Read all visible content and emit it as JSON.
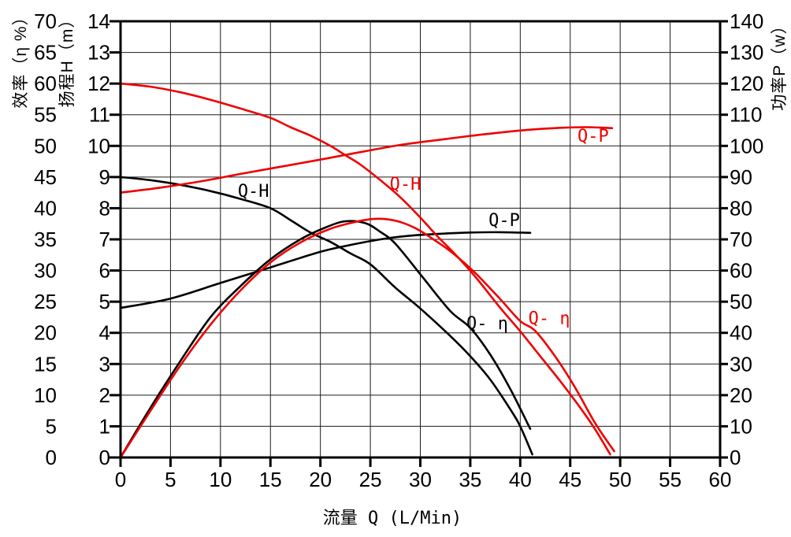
{
  "page": {
    "background": "#ffffff"
  },
  "chart_data": {
    "type": "line",
    "title": "",
    "description": "Pump performance curves: head (H), power (P) and efficiency (eta) versus flow rate Q for two pump models (black and red).",
    "x_axis": {
      "label": "流量 Q (L/Min)",
      "min": 0,
      "max": 60,
      "tick_step": 5,
      "ticks": [
        0,
        5,
        10,
        15,
        20,
        25,
        30,
        35,
        40,
        45,
        50,
        55,
        60
      ]
    },
    "y_axes": {
      "efficiency": {
        "label": "效率（η %）",
        "min": 0,
        "max": 70,
        "tick_step": 5,
        "ticks": [
          0,
          5,
          10,
          15,
          20,
          25,
          30,
          35,
          40,
          45,
          50,
          55,
          60,
          65,
          70
        ]
      },
      "head": {
        "label": "扬程H（m）",
        "min": 0,
        "max": 14,
        "tick_step": 1,
        "ticks": [
          0,
          1,
          2,
          3,
          4,
          5,
          6,
          7,
          8,
          9,
          10,
          11,
          12,
          13,
          14
        ]
      },
      "power": {
        "label": "功率P（w）",
        "min": 0,
        "max": 140,
        "tick_step": 10,
        "ticks": [
          0,
          10,
          20,
          30,
          40,
          50,
          60,
          70,
          80,
          90,
          100,
          110,
          120,
          130,
          140
        ]
      }
    },
    "grid": {
      "vertical_step_q": 5,
      "horizontal_step_head": 1,
      "on": true
    },
    "colors": {
      "black_pump": "#000000",
      "red_pump": "#ee0000",
      "grid": "#1b1b1b"
    },
    "series": [
      {
        "id": "q-h-black",
        "name": "Q-H (black pump)",
        "axis": "H",
        "color": "#000000",
        "points": [
          [
            0,
            9.0
          ],
          [
            3,
            8.9
          ],
          [
            6,
            8.75
          ],
          [
            9,
            8.55
          ],
          [
            12,
            8.3
          ],
          [
            15,
            8.0
          ],
          [
            17,
            7.62
          ],
          [
            19,
            7.22
          ],
          [
            21,
            6.92
          ],
          [
            23,
            6.55
          ],
          [
            25,
            6.2
          ],
          [
            27.5,
            5.45
          ],
          [
            30,
            4.78
          ],
          [
            33,
            3.9
          ],
          [
            35,
            3.25
          ],
          [
            37,
            2.5
          ],
          [
            39,
            1.55
          ],
          [
            40,
            1.0
          ],
          [
            41.2,
            0.1
          ]
        ]
      },
      {
        "id": "q-p-black",
        "name": "Q-P (black pump)",
        "axis": "w",
        "color": "#000000",
        "points": [
          [
            0,
            48
          ],
          [
            5,
            51
          ],
          [
            10,
            56
          ],
          [
            15,
            61
          ],
          [
            20,
            66
          ],
          [
            23,
            68.2
          ],
          [
            26,
            70
          ],
          [
            29,
            71.2
          ],
          [
            32,
            71.8
          ],
          [
            35,
            72.2
          ],
          [
            38,
            72.3
          ],
          [
            41,
            72.1
          ]
        ]
      },
      {
        "id": "q-eta-black",
        "name": "Q-η (black pump)",
        "axis": "eta",
        "color": "#000000",
        "points": [
          [
            0,
            0
          ],
          [
            3,
            8
          ],
          [
            6,
            15.5
          ],
          [
            9,
            22.5
          ],
          [
            12,
            27.5
          ],
          [
            15,
            31.8
          ],
          [
            18,
            35
          ],
          [
            20.5,
            36.9
          ],
          [
            22.5,
            37.9
          ],
          [
            24.5,
            37.6
          ],
          [
            26,
            36.2
          ],
          [
            27.5,
            34.3
          ],
          [
            30.3,
            28.8
          ],
          [
            33,
            23.5
          ],
          [
            35,
            20.8
          ],
          [
            37,
            16.5
          ],
          [
            39,
            11
          ],
          [
            41,
            4.6
          ]
        ]
      },
      {
        "id": "q-h-red",
        "name": "Q-H (red pump)",
        "axis": "H",
        "color": "#ee0000",
        "points": [
          [
            0,
            12.0
          ],
          [
            3,
            11.9
          ],
          [
            6,
            11.72
          ],
          [
            9,
            11.48
          ],
          [
            12,
            11.2
          ],
          [
            15,
            10.9
          ],
          [
            17,
            10.6
          ],
          [
            19,
            10.33
          ],
          [
            21,
            10.0
          ],
          [
            22.6,
            9.68
          ],
          [
            24,
            9.4
          ],
          [
            26,
            8.9
          ],
          [
            28,
            8.35
          ],
          [
            30,
            7.7
          ],
          [
            31.7,
            7.1
          ],
          [
            33.4,
            6.55
          ],
          [
            35.5,
            5.8
          ],
          [
            38,
            4.8
          ],
          [
            40,
            4.05
          ],
          [
            42,
            3.25
          ],
          [
            44,
            2.45
          ],
          [
            46,
            1.6
          ],
          [
            47.5,
            0.9
          ],
          [
            49,
            0.1
          ]
        ]
      },
      {
        "id": "q-p-red",
        "name": "Q-P (red pump)",
        "axis": "w",
        "color": "#ee0000",
        "points": [
          [
            0,
            85
          ],
          [
            4,
            86.6
          ],
          [
            8,
            88.6
          ],
          [
            12,
            91
          ],
          [
            16,
            93.3
          ],
          [
            20,
            95.6
          ],
          [
            24,
            98
          ],
          [
            28,
            100.3
          ],
          [
            32,
            102
          ],
          [
            35,
            103.2
          ],
          [
            38,
            104.3
          ],
          [
            41,
            105.2
          ],
          [
            44,
            105.8
          ],
          [
            46.5,
            106
          ],
          [
            49.2,
            105.7
          ]
        ]
      },
      {
        "id": "q-eta-red",
        "name": "Q-η (red pump)",
        "axis": "eta",
        "color": "#ee0000",
        "points": [
          [
            0,
            0
          ],
          [
            3,
            7.5
          ],
          [
            6,
            14.8
          ],
          [
            9,
            21.3
          ],
          [
            12,
            26.8
          ],
          [
            15,
            31.3
          ],
          [
            18,
            34.5
          ],
          [
            21,
            36.7
          ],
          [
            23.5,
            37.8
          ],
          [
            25.5,
            38.3
          ],
          [
            27.5,
            38.0
          ],
          [
            29.5,
            36.8
          ],
          [
            31.5,
            34.8
          ],
          [
            33.4,
            32.6
          ],
          [
            35.5,
            29.6
          ],
          [
            38,
            25.4
          ],
          [
            40,
            21.9
          ],
          [
            41.5,
            20.3
          ],
          [
            43.5,
            16.2
          ],
          [
            45.5,
            11.2
          ],
          [
            47.5,
            5.5
          ],
          [
            49.4,
            1.0
          ]
        ]
      }
    ],
    "curve_labels": [
      {
        "id": "label-q-h-black",
        "text": "Q-H",
        "q": 13.3,
        "value": 8.57,
        "axis": "H",
        "color": "#000000"
      },
      {
        "id": "label-q-h-red",
        "text": "Q-H",
        "q": 28.5,
        "value": 8.8,
        "axis": "H",
        "color": "#ee0000"
      },
      {
        "id": "label-q-p-black",
        "text": "Q-P",
        "q": 38.4,
        "value": 76.3,
        "axis": "w",
        "color": "#000000"
      },
      {
        "id": "label-q-p-red",
        "text": "Q-P",
        "q": 47.3,
        "value": 103.4,
        "axis": "w",
        "color": "#ee0000"
      },
      {
        "id": "label-q-eta-black",
        "text": "Q- η",
        "q": 36.7,
        "value": 21.6,
        "axis": "eta",
        "color": "#000000"
      },
      {
        "id": "label-q-eta-red",
        "text": "Q- η",
        "q": 42.9,
        "value": 22.4,
        "axis": "eta",
        "color": "#ee0000"
      }
    ]
  }
}
